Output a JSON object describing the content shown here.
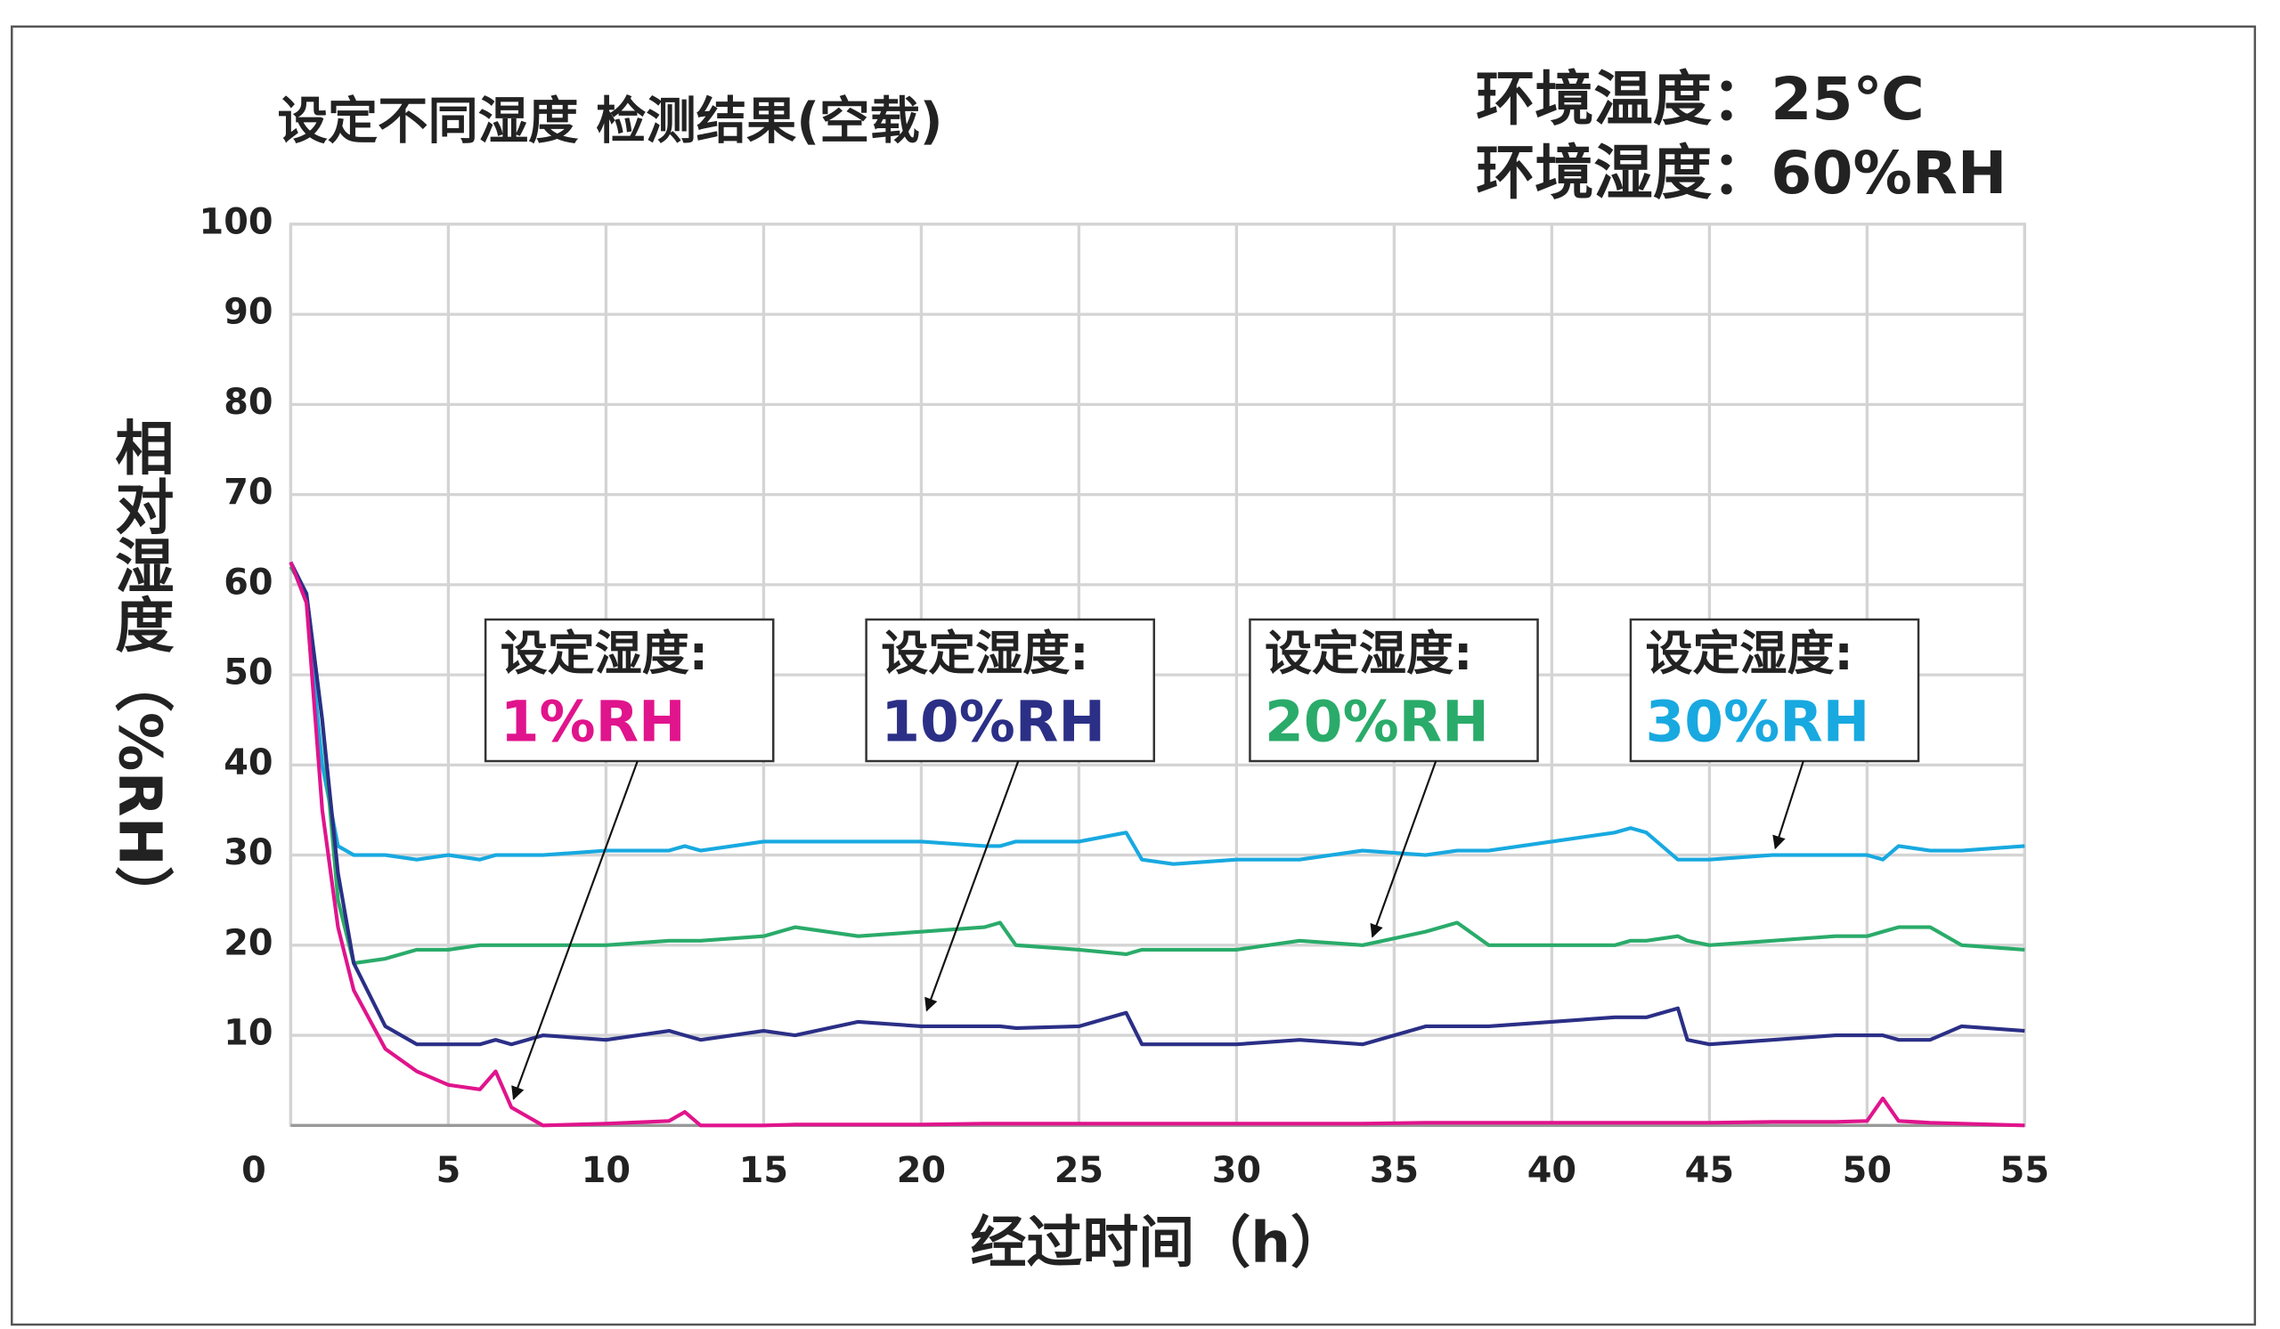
{
  "chart_data": {
    "type": "line",
    "title": "设定不同湿度 检测结果(空载)",
    "subtitle": [
      "环境温度：25℃",
      "环境湿度：60%RH"
    ],
    "x_label": "经过时间（h）",
    "y_label": "相对湿度（%RH）",
    "x": [
      0,
      0.5,
      1,
      1.5,
      2,
      3,
      4,
      5,
      6,
      6.5,
      7,
      8,
      10,
      12,
      12.5,
      13,
      15,
      16,
      18,
      20,
      22,
      22.5,
      23,
      25,
      26.5,
      27,
      28,
      30,
      32,
      34,
      36,
      37,
      38,
      40,
      42,
      42.5,
      43,
      44,
      44.3,
      45,
      47,
      49,
      50,
      50.5,
      51,
      52,
      53,
      55
    ],
    "series": [
      {
        "name": "1%RH",
        "color": "#e0148c",
        "values": [
          62.5,
          58,
          35,
          22,
          15,
          8.5,
          6,
          4.5,
          4,
          6,
          2,
          0,
          0.2,
          0.5,
          1.5,
          0,
          0,
          0.1,
          0.1,
          0.1,
          0.2,
          0.2,
          0.2,
          0.2,
          0.2,
          0.2,
          0.2,
          0.2,
          0.2,
          0.2,
          0.3,
          0.3,
          0.3,
          0.3,
          0.3,
          0.3,
          0.3,
          0.3,
          0.3,
          0.3,
          0.4,
          0.4,
          0.5,
          3,
          0.5,
          0.3,
          0.2,
          0
        ]
      },
      {
        "name": "10%RH",
        "color": "#2b2f86",
        "values": [
          62.5,
          59,
          45,
          28,
          18,
          11,
          9,
          9,
          9,
          9.5,
          9,
          10,
          9.5,
          10.5,
          10,
          9.5,
          10.5,
          10,
          11.5,
          11,
          11,
          11,
          10.8,
          11,
          12.5,
          9,
          9,
          9,
          9.5,
          9,
          11,
          11,
          11,
          11.5,
          12,
          12,
          12,
          13,
          9.5,
          9,
          9.5,
          10,
          10,
          10,
          9.5,
          9.5,
          11,
          10.5
        ]
      },
      {
        "name": "20%RH",
        "color": "#2aab6a",
        "values": [
          62,
          59,
          45,
          25,
          18,
          18.5,
          19.5,
          19.5,
          20,
          20,
          20,
          20,
          20,
          20.5,
          20.5,
          20.5,
          21,
          22,
          21,
          21.5,
          22,
          22.5,
          20,
          19.5,
          19,
          19.5,
          19.5,
          19.5,
          20.5,
          20,
          21.5,
          22.5,
          20,
          20,
          20,
          20.5,
          20.5,
          21,
          20.5,
          20,
          20.5,
          21,
          21,
          21.5,
          22,
          22,
          20,
          19.5
        ]
      },
      {
        "name": "30%RH",
        "color": "#18a9e0",
        "values": [
          62.5,
          58,
          40,
          31,
          30,
          30,
          29.5,
          30,
          29.5,
          30,
          30,
          30,
          30.5,
          30.5,
          31,
          30.5,
          31.5,
          31.5,
          31.5,
          31.5,
          31,
          31,
          31.5,
          31.5,
          32.5,
          29.5,
          29,
          29.5,
          29.5,
          30.5,
          30,
          30.5,
          30.5,
          31.5,
          32.5,
          33,
          32.5,
          29.5,
          29.5,
          29.5,
          30,
          30,
          30,
          29.5,
          31,
          30.5,
          30.5,
          31
        ]
      }
    ],
    "annotation_text": "设定湿度:",
    "xlim": [
      0,
      55
    ],
    "xticks": [
      0,
      5,
      10,
      15,
      20,
      25,
      30,
      35,
      40,
      45,
      50,
      55
    ],
    "ylim": [
      0,
      100
    ],
    "yticks": [
      10,
      20,
      30,
      40,
      50,
      60,
      70,
      80,
      90,
      100
    ],
    "grid": true
  }
}
